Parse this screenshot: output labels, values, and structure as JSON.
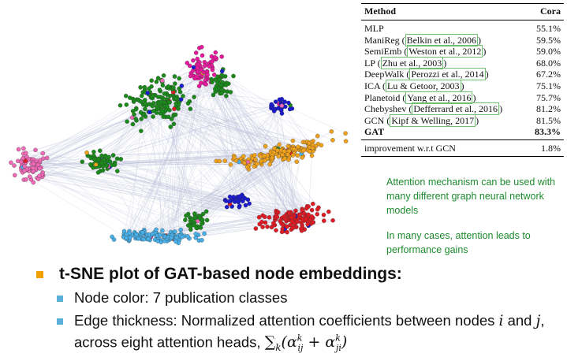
{
  "table": {
    "headers": [
      "Method",
      "Cora"
    ],
    "rows": [
      {
        "method": "MLP",
        "citation": "",
        "score": "55.1%"
      },
      {
        "method": "ManiReg",
        "citation": "Belkin et al., 2006",
        "score": "59.5%"
      },
      {
        "method": "SemiEmb",
        "citation": "Weston et al., 2012",
        "score": "59.0%"
      },
      {
        "method": "LP",
        "citation": "Zhu et al., 2003",
        "score": "68.0%"
      },
      {
        "method": "DeepWalk",
        "citation": "Perozzi et al., 2014",
        "score": "67.2%"
      },
      {
        "method": "ICA",
        "citation": "Lu & Getoor, 2003",
        "score": "75.1%"
      },
      {
        "method": "Planetoid",
        "citation": "Yang et al., 2016",
        "score": "75.7%"
      },
      {
        "method": "Chebyshev",
        "citation": "Defferrard et al., 2016",
        "score": "81.2%"
      },
      {
        "method": "GCN",
        "citation": "Kipf & Welling, 2017",
        "score": "81.5%"
      }
    ],
    "gat": {
      "method": "GAT",
      "score": "83.3%"
    },
    "improvement": {
      "label": "improvement w.r.t GCN",
      "value": "1.8%"
    }
  },
  "notes": {
    "note1": "Attention mechanism can be used with many different graph neural network models",
    "note2": "In many cases, attention leads to performance gains"
  },
  "bullets": {
    "main": "t-SNE plot of GAT-based node embeddings:",
    "sub1": "Node color: 7 publication classes",
    "sub2_text": "Edge thickness: Normalized attention coefficients between nodes",
    "sub2_i": "i",
    "sub2_and": "and",
    "sub2_j": "j",
    "sub2_tail": ", across eight attention heads,"
  },
  "colors": {
    "class_colors": [
      "#e8199c",
      "#1a8a1a",
      "#f0a21c",
      "#e01b24",
      "#48b0e8",
      "#1a1ad0",
      "#f06ab8"
    ],
    "edge": "#b8bcd8",
    "note_text": "#1e8a2e",
    "bullet_main": "#f0a000",
    "bullet_sub": "#5ab0d8"
  }
}
